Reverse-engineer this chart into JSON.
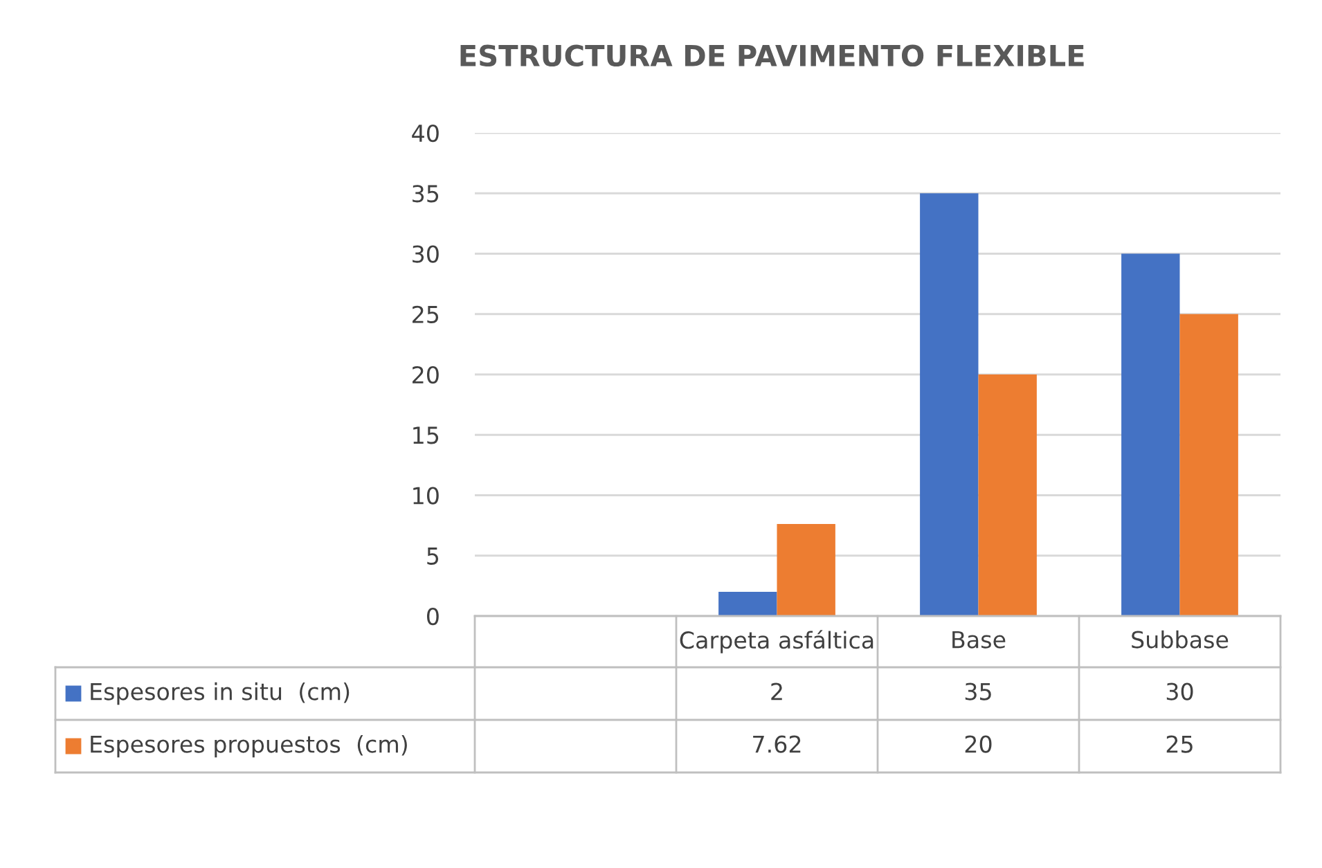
{
  "chart_data": {
    "type": "bar",
    "title": "ESTRUCTURA DE PAVIMENTO FLEXIBLE",
    "categories": [
      null,
      "Carpeta asfáltica",
      "Base",
      "Subbase"
    ],
    "series": [
      {
        "name": "Espesores in situ  (cm)",
        "color": "#4472c4",
        "values": [
          null,
          2,
          35,
          30
        ]
      },
      {
        "name": "Espesores propuestos  (cm)",
        "color": "#ed7d31",
        "values": [
          null,
          7.62,
          20,
          25
        ]
      }
    ],
    "ylim": [
      0,
      40
    ],
    "yticks": [
      0,
      5,
      10,
      15,
      20,
      25,
      30,
      35,
      40
    ],
    "grid": "y",
    "data_labels": true,
    "legend": "bottom"
  }
}
